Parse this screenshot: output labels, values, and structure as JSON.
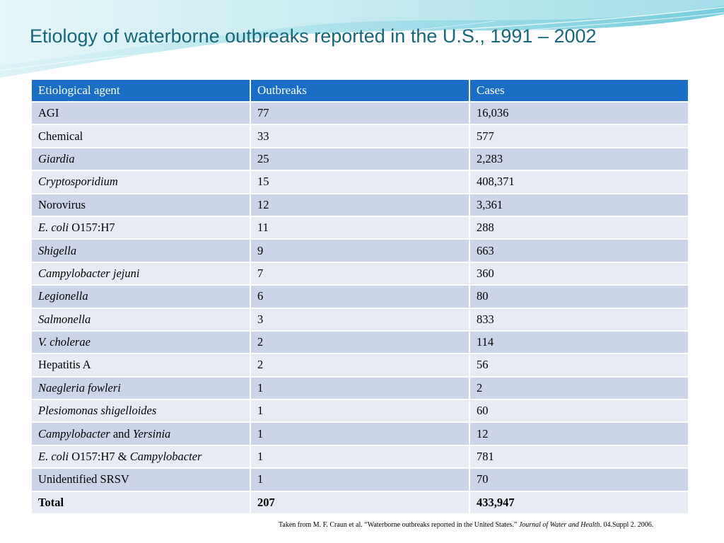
{
  "slide": {
    "title": "Etiology of waterborne outbreaks reported in the U.S., 1991 – 2002"
  },
  "table": {
    "headers": [
      "Etiological agent",
      "Outbreaks",
      "Cases"
    ],
    "rows": [
      {
        "agent": [
          {
            "t": "AGI",
            "i": false
          }
        ],
        "outbreaks": "77",
        "cases": "16,036"
      },
      {
        "agent": [
          {
            "t": "Chemical",
            "i": false
          }
        ],
        "outbreaks": "33",
        "cases": "577"
      },
      {
        "agent": [
          {
            "t": "Giardia",
            "i": true
          }
        ],
        "outbreaks": "25",
        "cases": "2,283"
      },
      {
        "agent": [
          {
            "t": "Cryptosporidium",
            "i": true
          }
        ],
        "outbreaks": "15",
        "cases": "408,371"
      },
      {
        "agent": [
          {
            "t": "Norovirus",
            "i": false
          }
        ],
        "outbreaks": "12",
        "cases": "3,361"
      },
      {
        "agent": [
          {
            "t": "E. coli",
            "i": true
          },
          {
            "t": " O157:H7",
            "i": false
          }
        ],
        "outbreaks": "11",
        "cases": "288"
      },
      {
        "agent": [
          {
            "t": "Shigella",
            "i": true
          }
        ],
        "outbreaks": "9",
        "cases": "663"
      },
      {
        "agent": [
          {
            "t": "Campylobacter jejuni",
            "i": true
          }
        ],
        "outbreaks": "7",
        "cases": "360"
      },
      {
        "agent": [
          {
            "t": "Legionella",
            "i": true
          }
        ],
        "outbreaks": "6",
        "cases": "80"
      },
      {
        "agent": [
          {
            "t": "Salmonella",
            "i": true
          }
        ],
        "outbreaks": "3",
        "cases": "833"
      },
      {
        "agent": [
          {
            "t": "V. cholerae",
            "i": true
          }
        ],
        "outbreaks": "2",
        "cases": "114"
      },
      {
        "agent": [
          {
            "t": "Hepatitis A",
            "i": false
          }
        ],
        "outbreaks": "2",
        "cases": "56"
      },
      {
        "agent": [
          {
            "t": "Naegleria fowleri",
            "i": true
          }
        ],
        "outbreaks": "1",
        "cases": "2"
      },
      {
        "agent": [
          {
            "t": "Plesiomonas shigelloides",
            "i": true
          }
        ],
        "outbreaks": "1",
        "cases": "60"
      },
      {
        "agent": [
          {
            "t": "Campylobacter",
            "i": true
          },
          {
            "t": " and ",
            "i": false
          },
          {
            "t": "Yersinia",
            "i": true
          }
        ],
        "outbreaks": "1",
        "cases": "12"
      },
      {
        "agent": [
          {
            "t": "E. coli",
            "i": true
          },
          {
            "t": " O157:H7 & ",
            "i": false
          },
          {
            "t": "Campylobacter",
            "i": true
          }
        ],
        "outbreaks": "1",
        "cases": "781"
      },
      {
        "agent": [
          {
            "t": "Unidentified SRSV",
            "i": false
          }
        ],
        "outbreaks": "1",
        "cases": "70"
      }
    ],
    "total": {
      "label": "Total",
      "outbreaks": "207",
      "cases": "433,947"
    }
  },
  "source": {
    "prefix": "Taken from M. F. Craun et al.  “Waterborne outbreaks reported in the United States.” ",
    "journal": "Journal of Water and Health",
    "suffix": ".  04.Suppl 2.  2006."
  },
  "colors": {
    "title": "#17667a",
    "header_bg": "#1b6ec6",
    "row_odd": "#cbd4e8",
    "row_even": "#e6ebf4"
  }
}
